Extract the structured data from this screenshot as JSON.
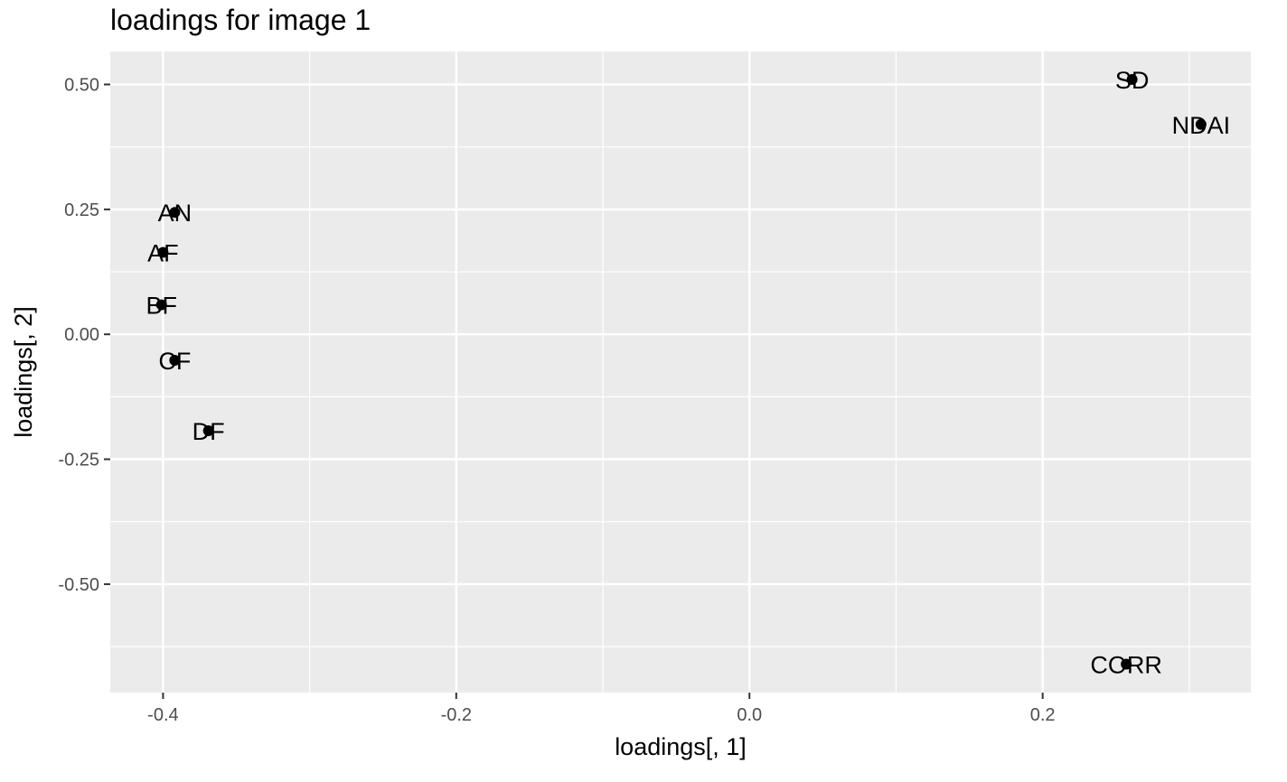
{
  "chart_data": {
    "type": "scatter",
    "title": "loadings for image 1",
    "xlabel": "loadings[, 1]",
    "ylabel": "loadings[, 2]",
    "xlim": [
      -0.436,
      0.342
    ],
    "ylim": [
      -0.717,
      0.566
    ],
    "x_major_ticks": [
      -0.4,
      -0.2,
      0.0,
      0.2
    ],
    "x_tick_labels": [
      "-0.4",
      "-0.2",
      "0.0",
      "0.2"
    ],
    "x_minor_ticks": [
      -0.3,
      -0.1,
      0.1,
      0.3
    ],
    "y_major_ticks": [
      0.5,
      0.25,
      0.0,
      -0.25,
      -0.5
    ],
    "y_tick_labels": [
      "0.50",
      "0.25",
      "0.00",
      "-0.25",
      "-0.50"
    ],
    "y_minor_ticks": [
      0.375,
      0.125,
      -0.125,
      -0.375,
      -0.625
    ],
    "grid": true,
    "legend": "none",
    "colors": {
      "panel": "#ebebeb",
      "grid": "#ffffff",
      "point": "#000000",
      "tick": "#4d4d4d"
    },
    "points": [
      {
        "label": "SD",
        "x": 0.261,
        "y": 0.51
      },
      {
        "label": "NDAI",
        "x": 0.308,
        "y": 0.42
      },
      {
        "label": "AN",
        "x": -0.392,
        "y": 0.244
      },
      {
        "label": "AF",
        "x": -0.4,
        "y": 0.164
      },
      {
        "label": "BF",
        "x": -0.401,
        "y": 0.059
      },
      {
        "label": "CF",
        "x": -0.392,
        "y": -0.052
      },
      {
        "label": "DF",
        "x": -0.369,
        "y": -0.193
      },
      {
        "label": "CORR",
        "x": 0.257,
        "y": -0.66
      }
    ]
  }
}
